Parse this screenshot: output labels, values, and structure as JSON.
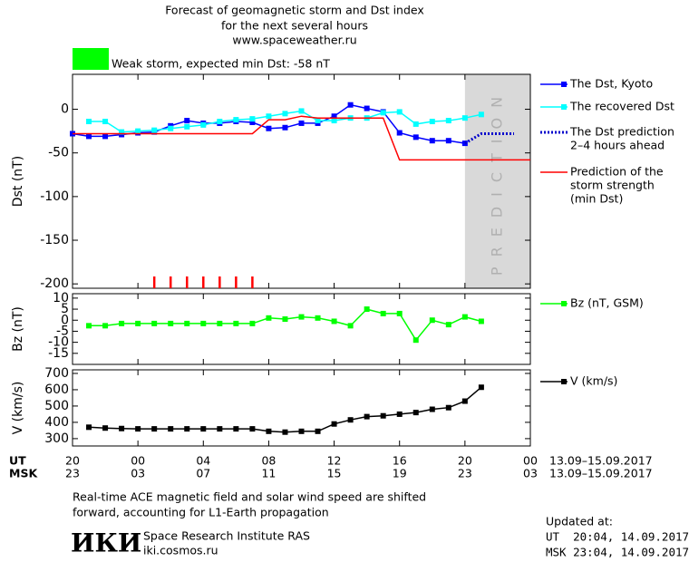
{
  "title": [
    "Forecast of geomagnetic storm and Dst index",
    "for the next several hours",
    "www.spaceweather.ru"
  ],
  "storm": {
    "label": "Weak storm, expected min Dst: -58 nT",
    "color": "#00ff00"
  },
  "chart_data": [
    {
      "type": "line",
      "ylabel": "Dst (nT)",
      "xlim": [
        0,
        28
      ],
      "xticks": [
        0,
        4,
        8,
        12,
        16,
        20,
        24,
        28
      ],
      "ylim": [
        -205,
        40
      ],
      "yticks": [
        0,
        -50,
        -100,
        -150,
        -200
      ],
      "prediction_zone": {
        "x": [
          24,
          28
        ],
        "label": "PREDICTION",
        "color": "#d9d9d9"
      },
      "storm_marks_x": [
        5,
        6,
        7,
        8,
        9,
        10,
        11
      ],
      "storm_marks_color": "#ff0000",
      "series": [
        {
          "name": [
            "The Dst, Kyoto"
          ],
          "color": "#0000ff",
          "marker": "square",
          "style": "solid",
          "x": [
            0,
            1,
            2,
            3,
            4,
            5,
            6,
            7,
            8,
            9,
            10,
            11,
            12,
            13,
            14,
            15,
            16,
            17,
            18,
            19,
            20,
            21,
            22,
            23,
            24
          ],
          "values": [
            -28,
            -31,
            -31,
            -29,
            -27,
            -26,
            -19,
            -13,
            -16,
            -16,
            -14,
            -15,
            -22,
            -21,
            -16,
            -16,
            -8,
            5,
            1,
            -3,
            -27,
            -32,
            -36,
            -36,
            -39
          ]
        },
        {
          "name": [
            "The recovered Dst"
          ],
          "color": "#00ffff",
          "marker": "square",
          "style": "solid",
          "x": [
            1,
            2,
            3,
            4,
            5,
            6,
            7,
            8,
            9,
            10,
            11,
            12,
            13,
            14,
            15,
            16,
            17,
            18,
            19,
            20,
            21,
            22,
            23,
            24,
            25
          ],
          "values": [
            -14,
            -14,
            -26,
            -25,
            -24,
            -22,
            -20,
            -18,
            -14,
            -12,
            -11,
            -8,
            -5,
            -2,
            -13,
            -13,
            -10,
            -10,
            -4,
            -3,
            -17,
            -14,
            -13,
            -10,
            -6
          ]
        },
        {
          "name": [
            "The Dst prediction",
            "2–4 hours ahead"
          ],
          "color": "#0000cc",
          "marker": "none",
          "style": "dotted",
          "x": [
            24,
            25,
            27
          ],
          "values": [
            -39,
            -28,
            -28
          ]
        },
        {
          "name": [
            "Prediction of the",
            "storm strength",
            "(min Dst)"
          ],
          "color": "#ff0000",
          "marker": "none",
          "style": "solid",
          "x": [
            0,
            11,
            12,
            13,
            14,
            15,
            19,
            20,
            28
          ],
          "values": [
            -28,
            -28,
            -12,
            -12,
            -8,
            -10,
            -10,
            -58,
            -58
          ]
        }
      ]
    },
    {
      "type": "line",
      "ylabel": "Bz (nT)",
      "xlim": [
        0,
        28
      ],
      "xticks": [
        0,
        4,
        8,
        12,
        16,
        20,
        24,
        28
      ],
      "ylim": [
        -20,
        12
      ],
      "yticks": [
        10,
        5,
        0,
        -5,
        -10,
        -15
      ],
      "series": [
        {
          "name": [
            "Bz (nT, GSM)"
          ],
          "color": "#00ff00",
          "marker": "square",
          "style": "solid",
          "x": [
            1,
            2,
            3,
            4,
            5,
            6,
            7,
            8,
            9,
            10,
            11,
            12,
            13,
            14,
            15,
            16,
            17,
            18,
            19,
            20,
            21,
            22,
            23,
            24,
            25
          ],
          "values": [
            -2.5,
            -2.5,
            -1.5,
            -1.5,
            -1.5,
            -1.5,
            -1.5,
            -1.5,
            -1.5,
            -1.5,
            -1.5,
            1,
            0.5,
            1.5,
            1,
            -0.5,
            -2.5,
            5,
            3,
            3,
            -9,
            0,
            -2,
            1.5,
            -0.5
          ]
        }
      ]
    },
    {
      "type": "line",
      "ylabel": "V (km/s)",
      "xlim": [
        0,
        28
      ],
      "xticks": [
        {
          "value": 0,
          "label": "20"
        },
        {
          "value": 4,
          "label": "00"
        },
        {
          "value": 8,
          "label": "04"
        },
        {
          "value": 12,
          "label": "08"
        },
        {
          "value": 16,
          "label": "12"
        },
        {
          "value": 20,
          "label": "16"
        },
        {
          "value": 24,
          "label": "20"
        },
        {
          "value": 28,
          "label": "00"
        }
      ],
      "xticks_msk": [
        "23",
        "03",
        "07",
        "11",
        "15",
        "19",
        "23",
        "03"
      ],
      "ut_label": "UT",
      "msk_label": "MSK",
      "date_range": [
        "13.09–15.09.2017",
        "13.09–15.09.2017"
      ],
      "ylim": [
        255,
        722
      ],
      "yticks": [
        700,
        600,
        500,
        400,
        300
      ],
      "series": [
        {
          "name": [
            "V (km/s)"
          ],
          "color": "#000000",
          "marker": "square",
          "style": "solid",
          "x": [
            1,
            2,
            3,
            4,
            5,
            6,
            7,
            8,
            9,
            10,
            11,
            12,
            13,
            14,
            15,
            16,
            17,
            18,
            19,
            20,
            21,
            22,
            23,
            24,
            25
          ],
          "values": [
            370,
            365,
            362,
            360,
            360,
            360,
            360,
            360,
            360,
            360,
            360,
            345,
            340,
            345,
            345,
            390,
            415,
            435,
            440,
            450,
            460,
            480,
            490,
            530,
            615
          ]
        }
      ]
    }
  ],
  "note": [
    "Real-time ACE magnetic field and solar wind speed are shifted",
    "forward, accounting for L1-Earth propagation"
  ],
  "institute": {
    "logo": "ИКИ",
    "name": "Space Research Institute RAS",
    "url": "iki.cosmos.ru"
  },
  "updated": {
    "label": "Updated at:",
    "ut": "UT  20:04, 14.09.2017",
    "msk": "MSK 23:04, 14.09.2017"
  }
}
